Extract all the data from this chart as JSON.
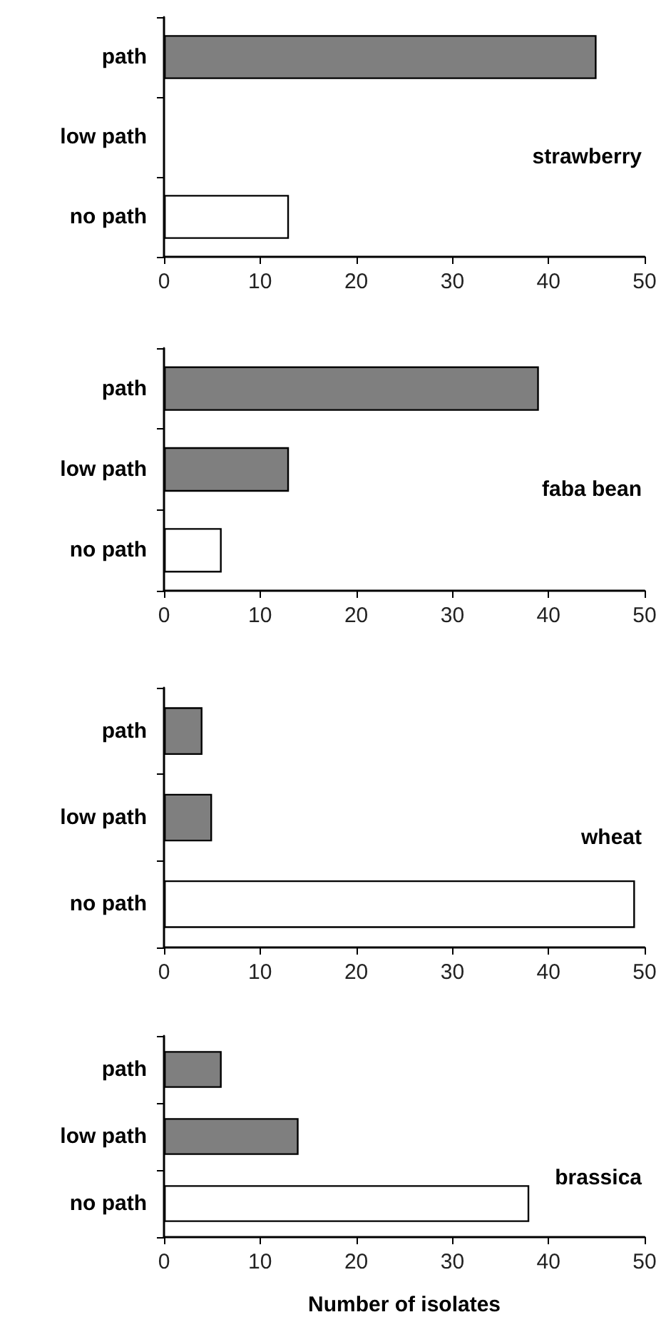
{
  "chart_data": [
    {
      "type": "bar",
      "orientation": "horizontal",
      "title": "strawberry",
      "categories": [
        "path",
        "low path",
        "no path"
      ],
      "values": [
        45,
        0,
        13
      ],
      "colors": [
        "#7f7f7f",
        "#7f7f7f",
        "#ffffff"
      ],
      "xlim": [
        0,
        50
      ],
      "xticks": [
        0,
        10,
        20,
        30,
        40,
        50
      ],
      "grid": false
    },
    {
      "type": "bar",
      "orientation": "horizontal",
      "title": "faba bean",
      "categories": [
        "path",
        "low path",
        "no path"
      ],
      "values": [
        39,
        13,
        6
      ],
      "colors": [
        "#7f7f7f",
        "#7f7f7f",
        "#ffffff"
      ],
      "xlim": [
        0,
        50
      ],
      "xticks": [
        0,
        10,
        20,
        30,
        40,
        50
      ],
      "grid": false
    },
    {
      "type": "bar",
      "orientation": "horizontal",
      "title": "wheat",
      "categories": [
        "path",
        "low path",
        "no path"
      ],
      "values": [
        4,
        5,
        49
      ],
      "colors": [
        "#7f7f7f",
        "#7f7f7f",
        "#ffffff"
      ],
      "xlim": [
        0,
        50
      ],
      "xticks": [
        0,
        10,
        20,
        30,
        40,
        50
      ],
      "grid": false
    },
    {
      "type": "bar",
      "orientation": "horizontal",
      "title": "brassica",
      "xlabel": "Number of isolates",
      "categories": [
        "path",
        "low path",
        "no path"
      ],
      "values": [
        6,
        14,
        38
      ],
      "colors": [
        "#7f7f7f",
        "#7f7f7f",
        "#ffffff"
      ],
      "xlim": [
        0,
        50
      ],
      "xticks": [
        0,
        10,
        20,
        30,
        40,
        50
      ],
      "grid": false
    }
  ]
}
